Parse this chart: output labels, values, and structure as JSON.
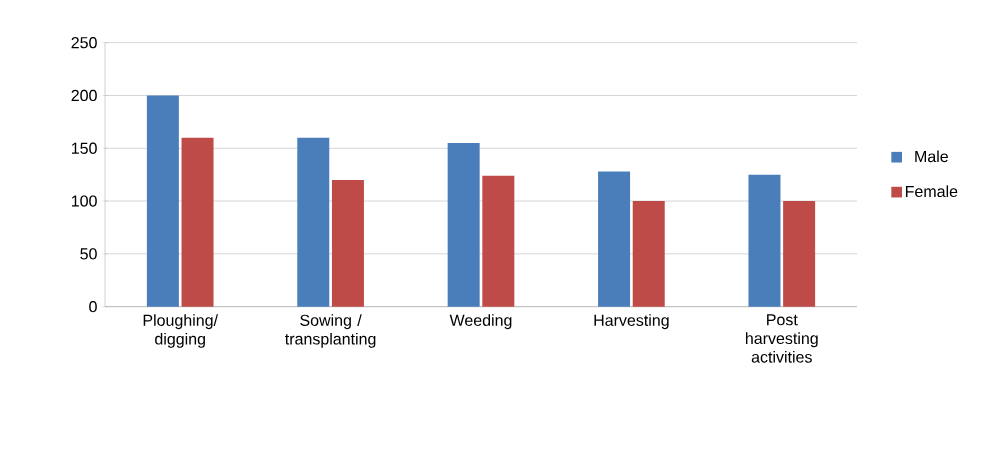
{
  "chart_data": {
    "type": "bar",
    "categories": [
      "Ploughing/ digging",
      "Sowing / transplanting",
      "Weeding",
      "Harvesting",
      "Post harvesting activities"
    ],
    "series": [
      {
        "name": "Male",
        "color": "#4a7ebb",
        "values": [
          200,
          160,
          155,
          128,
          125
        ]
      },
      {
        "name": "Female",
        "color": "#be4b48",
        "values": [
          160,
          120,
          124,
          100,
          100
        ]
      }
    ],
    "ylim": [
      0,
      250
    ],
    "yticks": [
      0,
      50,
      100,
      150,
      200,
      250
    ],
    "grid": "y",
    "legend": "right"
  }
}
